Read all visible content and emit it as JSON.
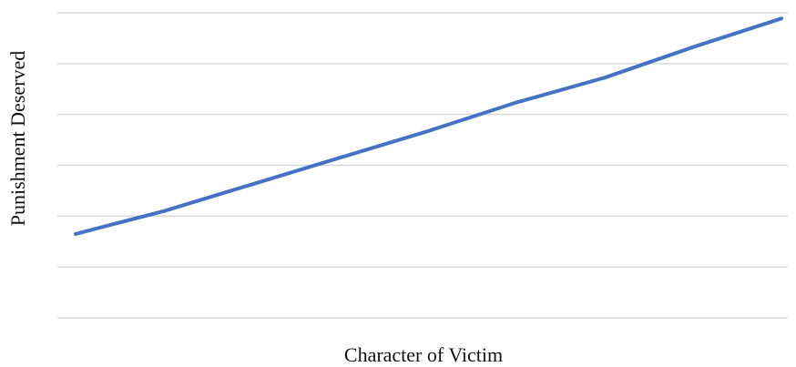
{
  "chart_data": {
    "type": "line",
    "title": "",
    "xlabel": "Character of Victim",
    "ylabel": "Punishment Deserved",
    "x": [
      0,
      1,
      2,
      3,
      4,
      5,
      6,
      7,
      8
    ],
    "series": [
      {
        "values": [
          0.2,
          0.8,
          1.5,
          2.2,
          2.9,
          3.65,
          4.3,
          5.1,
          5.85
        ]
      }
    ],
    "ylim": [
      -2,
      6
    ],
    "xlim": [
      0,
      8
    ],
    "grid": true,
    "gridline_count": 7,
    "legend": "none",
    "line_color": "#4472c4",
    "grid_color": "#d9d9d9"
  }
}
